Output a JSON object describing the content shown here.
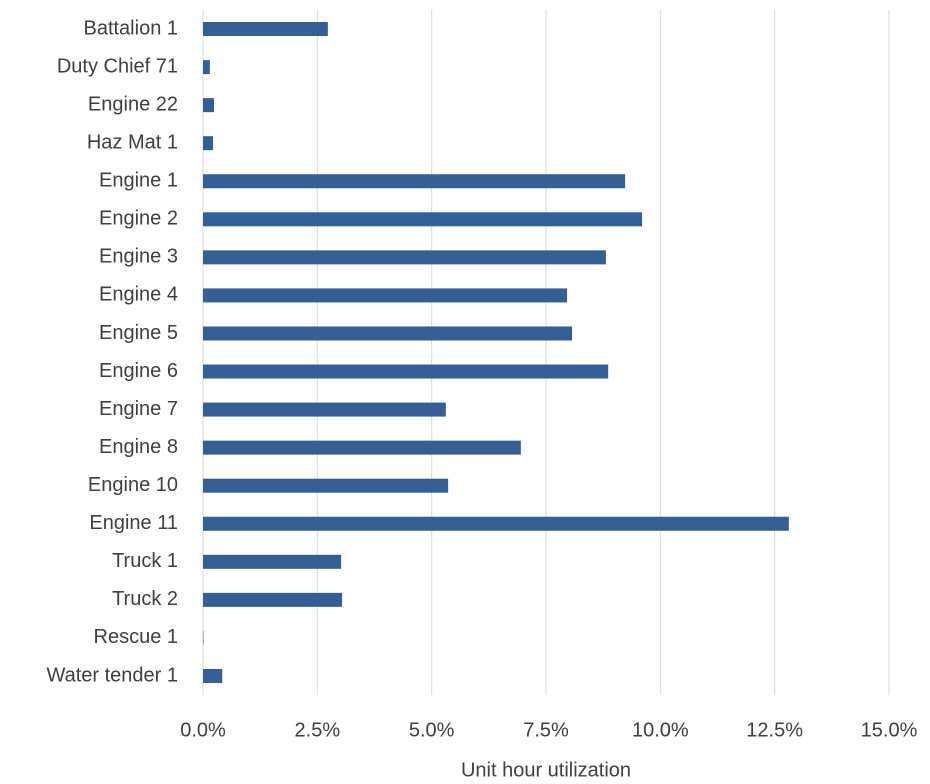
{
  "chart_data": {
    "type": "barh",
    "categories": [
      "Battalion 1",
      "Duty Chief 71",
      "Engine 22",
      "Haz Mat 1",
      "Engine 1",
      "Engine 2",
      "Engine 3",
      "Engine 4",
      "Engine 5",
      "Engine 6",
      "Engine 7",
      "Engine 8",
      "Engine 10",
      "Engine 11",
      "Truck 1",
      "Truck 2",
      "Rescue 1",
      "Water tender 1"
    ],
    "values": [
      2.73,
      0.15,
      0.24,
      0.22,
      9.23,
      9.6,
      8.81,
      7.96,
      8.07,
      8.86,
      5.31,
      6.95,
      5.36,
      12.81,
      3.02,
      3.04,
      0.01,
      0.42
    ],
    "color": "#335f96",
    "xlabel": "Unit hour utilization",
    "xlim": [
      0,
      15
    ],
    "xticks": [
      {
        "value": 0,
        "label": "0.0%"
      },
      {
        "value": 2.5,
        "label": "2.5%"
      },
      {
        "value": 5,
        "label": "5.0%"
      },
      {
        "value": 7.5,
        "label": "7.5%"
      },
      {
        "value": 10,
        "label": "10.0%"
      },
      {
        "value": 12.5,
        "label": "12.5%"
      },
      {
        "value": 15,
        "label": "15.0%"
      }
    ],
    "grid": true
  }
}
